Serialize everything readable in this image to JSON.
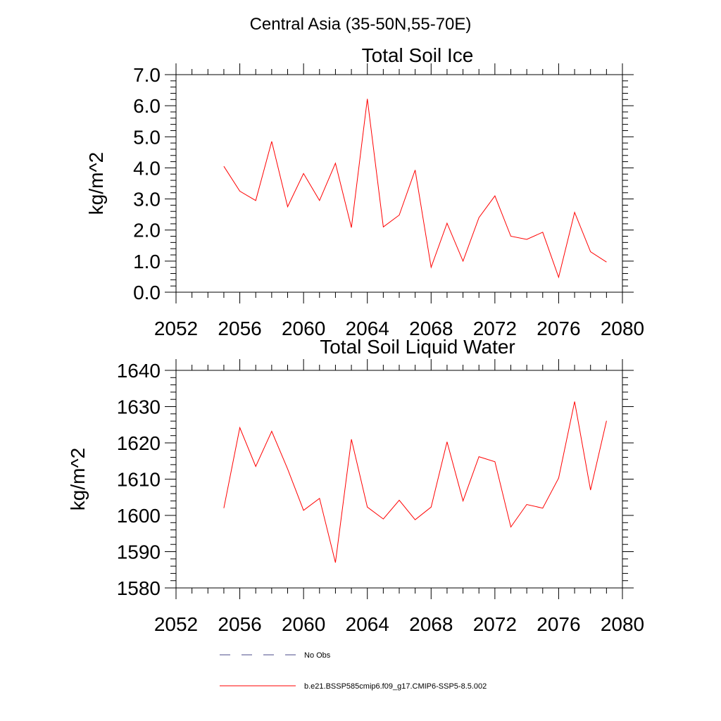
{
  "figure": {
    "title": "Central Asia (35-50N,55-70E)"
  },
  "legend": {
    "entries": [
      {
        "label": "No Obs",
        "style": "dashed",
        "color": "#4a4a8a"
      },
      {
        "label": "b.e21.BSSP585cmip6.f09_g17.CMIP6-SSP5-8.5.002",
        "style": "solid",
        "color": "#ff0000"
      }
    ]
  },
  "chart_data": [
    {
      "type": "line",
      "title": "Total Soil Ice",
      "xlabel": "",
      "ylabel": "kg/m^2",
      "xlim": [
        2052,
        2080
      ],
      "ylim": [
        0,
        7
      ],
      "x_ticks": [
        "2052",
        "2056",
        "2060",
        "2064",
        "2068",
        "2072",
        "2076",
        "2080"
      ],
      "y_ticks": [
        "0.0",
        "1.0",
        "2.0",
        "3.0",
        "4.0",
        "5.0",
        "6.0",
        "7.0"
      ],
      "grid": false,
      "series": [
        {
          "name": "b.e21.BSSP585cmip6.f09_g17.CMIP6-SSP5-8.5.002",
          "color": "#ff0000",
          "x": [
            2055,
            2056,
            2057,
            2058,
            2059,
            2060,
            2061,
            2062,
            2063,
            2064,
            2065,
            2066,
            2067,
            2068,
            2069,
            2070,
            2071,
            2072,
            2073,
            2074,
            2075,
            2076,
            2077,
            2078,
            2079
          ],
          "y": [
            4.05,
            3.25,
            2.95,
            4.85,
            2.75,
            3.82,
            2.95,
            4.15,
            2.08,
            6.22,
            2.1,
            2.48,
            3.93,
            0.8,
            2.22,
            1.0,
            2.4,
            3.1,
            1.8,
            1.7,
            1.93,
            0.48,
            2.57,
            1.3,
            0.97
          ]
        }
      ]
    },
    {
      "type": "line",
      "title": "Total Soil Liquid Water",
      "xlabel": "",
      "ylabel": "kg/m^2",
      "xlim": [
        2052,
        2080
      ],
      "ylim": [
        1580,
        1640
      ],
      "x_ticks": [
        "2052",
        "2056",
        "2060",
        "2064",
        "2068",
        "2072",
        "2076",
        "2080"
      ],
      "y_ticks": [
        "1580",
        "1590",
        "1600",
        "1610",
        "1620",
        "1630",
        "1640"
      ],
      "grid": false,
      "series": [
        {
          "name": "b.e21.BSSP585cmip6.f09_g17.CMIP6-SSP5-8.5.002",
          "color": "#ff0000",
          "x": [
            2055,
            2056,
            2057,
            2058,
            2059,
            2060,
            2061,
            2062,
            2063,
            2064,
            2065,
            2066,
            2067,
            2068,
            2069,
            2070,
            2071,
            2072,
            2073,
            2074,
            2075,
            2076,
            2077,
            2078,
            2079
          ],
          "y": [
            1602,
            1624.2,
            1613.5,
            1623.2,
            1612.8,
            1601.4,
            1604.7,
            1587,
            1621,
            1602.3,
            1599,
            1604.2,
            1598.8,
            1602.3,
            1620.3,
            1604,
            1616.2,
            1614.8,
            1596.8,
            1603,
            1602,
            1610.3,
            1631.4,
            1607,
            1626.1
          ]
        }
      ]
    }
  ]
}
